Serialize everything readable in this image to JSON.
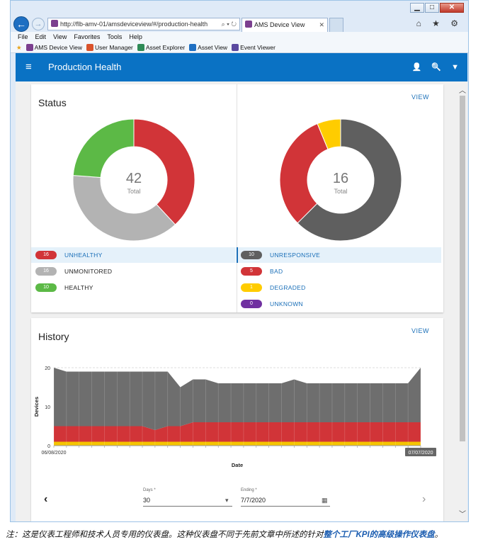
{
  "browser": {
    "window_buttons": {
      "minimize": "▁",
      "maximize": "□",
      "close": "✕"
    },
    "back_glyph": "←",
    "forward_glyph": "→",
    "address": "http://flb-amv-01/amsdeviceview/#/production-health",
    "address_icons": "⌕ ▾ ↻",
    "tab_title": "AMS Device View",
    "tab_close": "✕",
    "top_icons": "⌂ ★ ⚙",
    "menu": [
      "File",
      "Edit",
      "View",
      "Favorites",
      "Tools",
      "Help"
    ],
    "favorites": [
      {
        "label": "AMS Device View",
        "color": "#7b3f8f"
      },
      {
        "label": "User Manager",
        "color": "#d9532c"
      },
      {
        "label": "Asset Explorer",
        "color": "#2e8b57"
      },
      {
        "label": "Asset View",
        "color": "#1e6fc2"
      },
      {
        "label": "Event Viewer",
        "color": "#5b4aa0"
      }
    ]
  },
  "app": {
    "title": "Production Health",
    "menu_icon": "≡",
    "user_icon": "👤",
    "search_icon": "🔍",
    "filter_icon": "▼"
  },
  "status": {
    "title": "Status",
    "view_label": "VIEW",
    "left_donut": {
      "total": "42",
      "total_label": "Total",
      "legend": [
        {
          "count": "16",
          "label": "UNHEALTHY",
          "color": "#d13438",
          "link": true
        },
        {
          "count": "16",
          "label": "UNMONITORED",
          "color": "#b3b3b3",
          "link": false
        },
        {
          "count": "10",
          "label": "HEALTHY",
          "color": "#5cb946",
          "link": false
        }
      ]
    },
    "right_donut": {
      "total": "16",
      "total_label": "Total",
      "legend": [
        {
          "count": "10",
          "label": "UNRESPONSIVE",
          "color": "#5f5f5f"
        },
        {
          "count": "5",
          "label": "BAD",
          "color": "#d13438"
        },
        {
          "count": "1",
          "label": "DEGRADED",
          "color": "#ffcc00"
        },
        {
          "count": "0",
          "label": "UNKNOWN",
          "color": "#7030a0"
        }
      ]
    }
  },
  "history": {
    "title": "History",
    "view_label": "VIEW",
    "days_label": "Days *",
    "days_value": "30",
    "ending_label": "Ending *",
    "ending_value": "7/7/2020",
    "prev_icon": "‹",
    "next_icon": "›",
    "dropdown_icon": "▾",
    "calendar_icon": "▦"
  },
  "chart_data": {
    "type": "area",
    "xlabel": "Date",
    "ylabel": "Devices",
    "ylim": [
      0,
      20
    ],
    "yticks": [
      0,
      10,
      20
    ],
    "x_start_label": "06/08/2020",
    "x_end_label": "07/07/2020",
    "x_points": 30,
    "series": [
      {
        "color": "#f5c400",
        "values": [
          1,
          1,
          1,
          1,
          1,
          1,
          1,
          1,
          1,
          1,
          1,
          1,
          1,
          1,
          1,
          1,
          1,
          1,
          1,
          1,
          1,
          1,
          1,
          1,
          1,
          1,
          1,
          1,
          1,
          1
        ]
      },
      {
        "color": "#d13438",
        "values": [
          4,
          4,
          4,
          4,
          4,
          4,
          4,
          4,
          3,
          4,
          4,
          5,
          5,
          5,
          5,
          5,
          5,
          5,
          5,
          5,
          5,
          5,
          5,
          5,
          5,
          5,
          5,
          5,
          5,
          5
        ]
      },
      {
        "color": "#6e6e6e",
        "values": [
          15,
          14,
          14,
          14,
          14,
          14,
          14,
          14,
          15,
          14,
          10,
          11,
          11,
          10,
          10,
          10,
          10,
          10,
          10,
          11,
          10,
          10,
          10,
          10,
          10,
          10,
          10,
          10,
          10,
          14
        ]
      }
    ]
  },
  "caption": {
    "pre": "注：这是仪表工程师和技术人员专用的仪表盘。这种仪表盘不同于先前文章中所述的针对",
    "highlight_a": "整个工厂",
    "highlight_b": "KPI",
    "highlight_c": "的高级操作仪表盘",
    "post": "。"
  }
}
